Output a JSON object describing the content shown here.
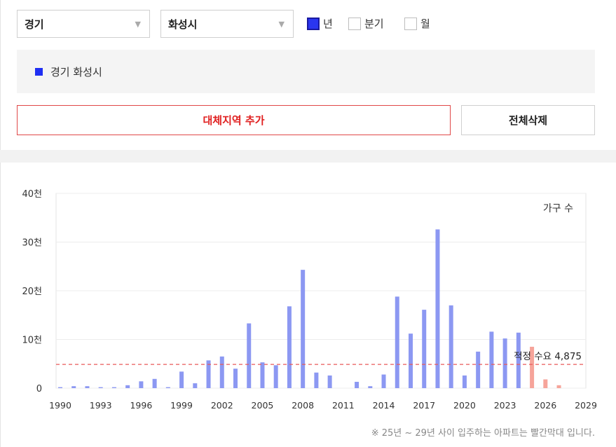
{
  "filters": {
    "province": "경기",
    "city": "화성시",
    "periods": [
      {
        "label": "년",
        "checked": true
      },
      {
        "label": "분기",
        "checked": false
      },
      {
        "label": "월",
        "checked": false
      }
    ]
  },
  "legend": {
    "label": "경기 화성시",
    "color": "#1f2ff3"
  },
  "buttons": {
    "add": "대체지역 추가",
    "clear": "전체삭제"
  },
  "note": "※ 25년 ~ 29년 사이 입주하는 아파트는 빨간막대 입니다.",
  "chart_data": {
    "type": "bar",
    "series_label": "가구 수",
    "y_ticks": [
      {
        "value": 0,
        "label": "0"
      },
      {
        "value": 10000,
        "label": "10천"
      },
      {
        "value": 20000,
        "label": "20천"
      },
      {
        "value": 30000,
        "label": "30천"
      },
      {
        "value": 40000,
        "label": "40천"
      }
    ],
    "ylim": [
      0,
      40000
    ],
    "xlim": [
      1990,
      2029
    ],
    "x_ticks": [
      "1990",
      "1993",
      "1996",
      "1999",
      "2002",
      "2005",
      "2008",
      "2011",
      "2014",
      "2017",
      "2020",
      "2023",
      "2026",
      "2029"
    ],
    "reference_line": {
      "label": "적정 수요",
      "value": 4875,
      "value_label": "4,875",
      "color": "#e85a5a"
    },
    "colors": {
      "actual": "#8c98f2",
      "planned": "#f6a49a"
    },
    "years": [
      1990,
      1991,
      1992,
      1993,
      1994,
      1995,
      1996,
      1997,
      1998,
      1999,
      2000,
      2001,
      2002,
      2003,
      2004,
      2005,
      2006,
      2007,
      2008,
      2009,
      2010,
      2011,
      2012,
      2013,
      2014,
      2015,
      2016,
      2017,
      2018,
      2019,
      2020,
      2021,
      2022,
      2023,
      2024,
      2025,
      2026,
      2027
    ],
    "values": [
      200,
      400,
      400,
      200,
      200,
      600,
      1400,
      1900,
      200,
      3400,
      1000,
      5700,
      6500,
      4000,
      13300,
      5300,
      4700,
      16800,
      24300,
      3200,
      2600,
      0,
      1300,
      400,
      2800,
      18800,
      11200,
      16100,
      32600,
      17000,
      2600,
      7500,
      11600,
      10200,
      11400,
      8500,
      1800,
      600
    ],
    "planned_from": 2025
  }
}
